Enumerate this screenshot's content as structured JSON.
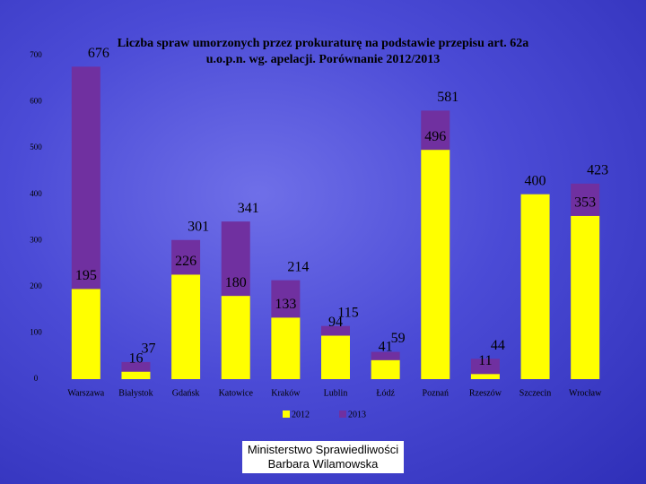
{
  "chart_data": {
    "type": "bar",
    "barmode": "overlay",
    "title": "Liczba spraw umorzonych przez prokuraturę na podstawie przepisu art. 62a u.o.p.n. wg. apelacji. Porównanie 2012/2013",
    "categories": [
      "Warszawa",
      "Białystok",
      "Gdańsk",
      "Katowice",
      "Kraków",
      "Lublin",
      "Łódź",
      "Poznań",
      "Rzeszów",
      "Szczecin",
      "Wrocław"
    ],
    "series": [
      {
        "name": "2012",
        "color": "#ffff00",
        "values": [
          195,
          16,
          226,
          180,
          133,
          94,
          41,
          496,
          11,
          400,
          353
        ]
      },
      {
        "name": "2013",
        "color": "#7030a0",
        "values": [
          676,
          37,
          301,
          341,
          214,
          115,
          59,
          581,
          44,
          null,
          423
        ]
      }
    ],
    "ylim": [
      0,
      700
    ],
    "yticks": [
      0,
      100,
      200,
      300,
      400,
      500,
      600,
      700
    ],
    "legend": "bottom"
  },
  "footer": [
    "Ministerstwo Sprawiedliwości",
    "Barbara Wilamowska"
  ]
}
